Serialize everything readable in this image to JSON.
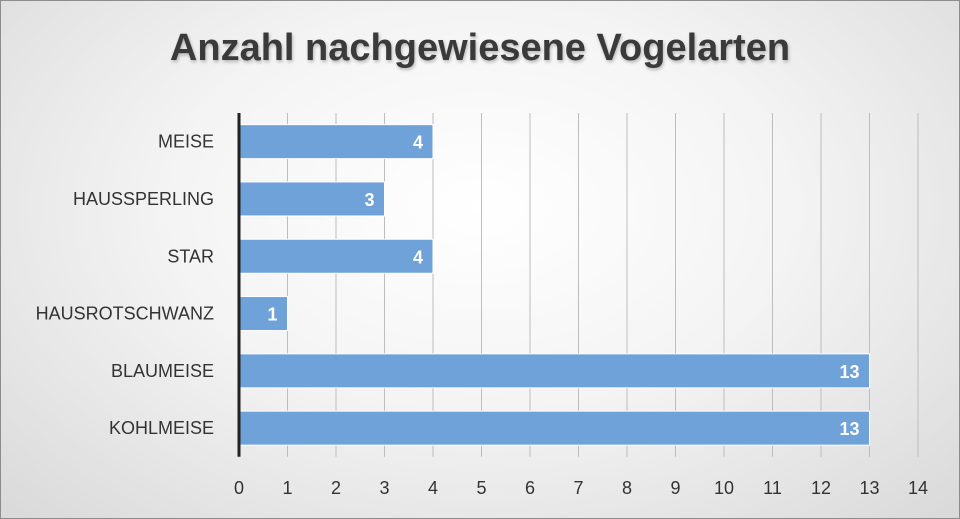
{
  "chart_data": {
    "type": "bar",
    "orientation": "horizontal",
    "title": "Anzahl nachgewiesene Vogelarten",
    "categories": [
      "MEISE",
      "HAUSSPERLING",
      "STAR",
      "HAUSROTSCHWANZ",
      "BLAUMEISE",
      "KOHLMEISE"
    ],
    "values": [
      4,
      3,
      4,
      1,
      13,
      13
    ],
    "xlim": [
      0,
      14
    ],
    "xticks": [
      "0",
      "1",
      "2",
      "3",
      "4",
      "5",
      "6",
      "7",
      "8",
      "9",
      "10",
      "11",
      "12",
      "13",
      "14"
    ],
    "grid": true,
    "legend": "none",
    "bar_color": "#6fa2d8",
    "bar_edge_color": "#ffffff"
  }
}
